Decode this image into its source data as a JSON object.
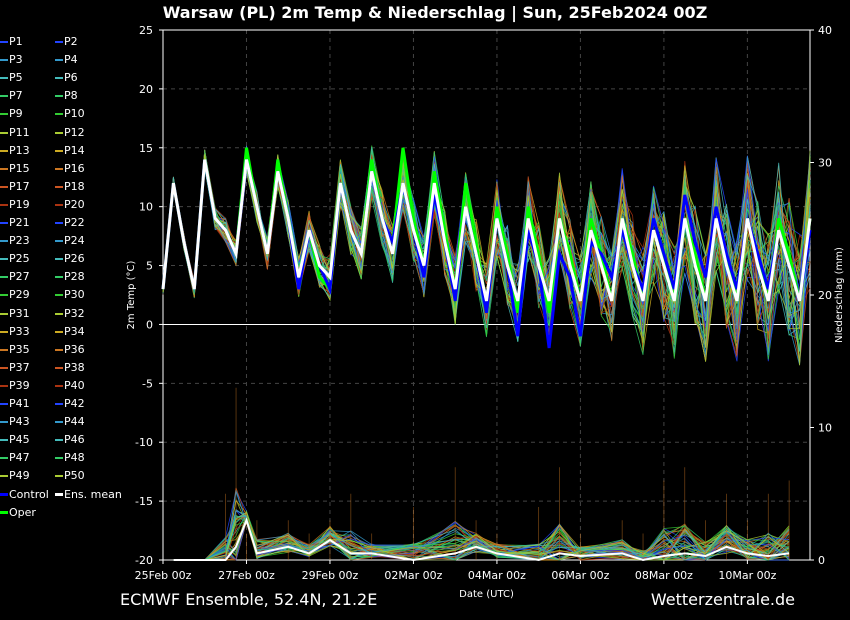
{
  "title": "Warsaw  (PL)  2m Temp & Niederschlag | Sun, 25Feb2024 00Z",
  "footer": {
    "left": "ECMWF Ensemble, 52.4N, 21.2E",
    "right": "Wetterzentrale.de"
  },
  "colors": {
    "background": "#000000",
    "control": "#0000ff",
    "mean": "#ffffff",
    "oper": "#00ff00",
    "grid": "#444444"
  },
  "legend": {
    "members": [
      "P1",
      "P2",
      "P3",
      "P4",
      "P5",
      "P6",
      "P7",
      "P8",
      "P9",
      "P10",
      "P11",
      "P12",
      "P13",
      "P14",
      "P15",
      "P16",
      "P17",
      "P18",
      "P19",
      "P20",
      "P21",
      "P22",
      "P23",
      "P24",
      "P25",
      "P26",
      "P27",
      "P28",
      "P29",
      "P30",
      "P31",
      "P32",
      "P33",
      "P34",
      "P35",
      "P36",
      "P37",
      "P38",
      "P39",
      "P40",
      "P41",
      "P42",
      "P43",
      "P44",
      "P45",
      "P46",
      "P47",
      "P48",
      "P49",
      "P50"
    ],
    "member_colors": [
      "#2244ff",
      "#2244ff",
      "#3399cc",
      "#3399cc",
      "#44bbbb",
      "#44bbbb",
      "#33cc66",
      "#33cc66",
      "#33cc33",
      "#33cc33",
      "#aacc33",
      "#aacc33",
      "#ccaa22",
      "#ccaa22",
      "#cc7722",
      "#cc7722",
      "#cc5522",
      "#cc5522",
      "#aa3311",
      "#aa3311",
      "#2244ff",
      "#2244ff",
      "#3399cc",
      "#3399cc",
      "#44bbbb",
      "#44bbbb",
      "#33cc66",
      "#33cc66",
      "#33cc33",
      "#33cc33",
      "#aacc33",
      "#aacc33",
      "#ccaa22",
      "#ccaa22",
      "#cc7722",
      "#cc7722",
      "#cc5522",
      "#cc5522",
      "#aa3311",
      "#aa3311",
      "#2244ff",
      "#2244ff",
      "#3399cc",
      "#3399cc",
      "#44bbbb",
      "#44bbbb",
      "#33cc66",
      "#33cc66",
      "#aacc33",
      "#aacc33"
    ],
    "control_label": "Control",
    "mean_label": "Ens. mean",
    "oper_label": "Oper"
  },
  "chart_data": {
    "type": "line",
    "xlabel": "Date (UTC)",
    "ylabel": "2m Temp (°C)",
    "y2label": "Niederschlag (mm)",
    "ylim": [
      -20,
      25
    ],
    "y2lim": [
      0,
      40
    ],
    "yticks": [
      -20,
      -15,
      -10,
      -5,
      0,
      5,
      10,
      15,
      20,
      25
    ],
    "y2ticks": [
      0,
      10,
      20,
      30,
      40
    ],
    "xlim": [
      0,
      15.5
    ],
    "xticks": [
      0,
      2,
      4,
      6,
      8,
      10,
      12,
      14
    ],
    "xticklabels": [
      "25Feb 00z",
      "27Feb 00z",
      "29Feb 00z",
      "02Mar 00z",
      "04Mar 00z",
      "06Mar 00z",
      "08Mar 00z",
      "10Mar 00z"
    ],
    "grid": true,
    "x": [
      0,
      0.25,
      0.5,
      0.75,
      1,
      1.25,
      1.5,
      1.75,
      2,
      2.25,
      2.5,
      2.75,
      3,
      3.25,
      3.5,
      3.75,
      4,
      4.25,
      4.5,
      4.75,
      5,
      5.25,
      5.5,
      5.75,
      6,
      6.25,
      6.5,
      6.75,
      7,
      7.25,
      7.5,
      7.75,
      8,
      8.25,
      8.5,
      8.75,
      9,
      9.25,
      9.5,
      9.75,
      10,
      10.25,
      10.5,
      10.75,
      11,
      11.25,
      11.5,
      11.75,
      12,
      12.25,
      12.5,
      12.75,
      13,
      13.25,
      13.5,
      13.75,
      14,
      14.25,
      14.5,
      14.75,
      15,
      15.25,
      15.5
    ],
    "series": [
      {
        "name": "Ens. mean",
        "values": [
          3,
          12,
          7,
          3,
          14,
          9,
          8,
          6,
          14,
          10,
          6,
          13,
          9,
          4,
          8,
          5,
          4,
          12,
          8,
          6,
          13,
          9,
          6,
          12,
          8,
          5,
          12,
          7,
          3,
          10,
          6,
          2,
          9,
          5,
          2,
          9,
          5,
          2,
          9,
          5,
          2,
          8,
          5,
          2,
          9,
          5,
          2,
          8,
          5,
          2,
          9,
          5,
          2,
          9,
          5,
          2,
          9,
          5,
          2,
          8,
          5,
          2,
          9
        ]
      },
      {
        "name": "Control",
        "values": [
          3,
          12,
          7,
          3,
          14,
          9,
          8,
          6,
          14,
          10,
          6,
          13,
          9,
          3,
          8,
          5,
          3,
          12,
          8,
          6,
          13,
          9,
          7,
          12,
          8,
          4,
          11,
          7,
          2,
          10,
          6,
          1,
          9,
          5,
          -1,
          8,
          5,
          -2,
          6,
          4,
          -1,
          7,
          6,
          4,
          8,
          5,
          3,
          9,
          6,
          3,
          11,
          7,
          4,
          10,
          6,
          3,
          9,
          6,
          3,
          8,
          5,
          2,
          8
        ]
      },
      {
        "name": "Oper",
        "values": [
          3,
          12,
          7,
          3,
          14,
          9,
          8,
          6,
          15,
          10,
          6,
          14,
          9,
          4,
          8,
          4,
          3,
          12,
          8,
          6,
          14,
          9,
          7,
          15,
          9,
          5,
          13,
          8,
          3,
          12,
          7,
          1,
          10,
          6,
          1,
          10,
          6,
          1,
          9,
          6,
          2,
          9,
          6,
          2,
          9,
          6,
          2,
          9,
          6,
          2,
          9,
          6,
          2,
          9,
          6,
          2,
          9,
          6,
          2,
          9,
          6,
          2,
          9
        ]
      }
    ],
    "precip": {
      "name": "Niederschlag",
      "x": [
        1.5,
        1.75,
        2,
        2.25,
        3,
        3.5,
        4,
        4.5,
        5,
        6,
        7,
        7.5,
        8,
        9,
        9.5,
        10,
        11,
        11.5,
        12,
        12.5,
        13,
        13.5,
        14,
        14.5,
        15
      ],
      "values": [
        0,
        1,
        3,
        0.5,
        1,
        0.5,
        1.5,
        0.5,
        0.5,
        0,
        0.5,
        1,
        0.5,
        0,
        0.5,
        0.3,
        0.5,
        0,
        0.3,
        0.5,
        0.3,
        1,
        0.5,
        0.3,
        0.5
      ],
      "max_values": [
        5,
        13,
        2,
        3,
        3,
        2,
        3,
        5,
        2,
        4,
        7,
        3,
        2,
        4,
        7,
        2,
        3,
        2,
        6,
        7,
        3,
        5,
        3,
        5,
        6
      ]
    }
  }
}
